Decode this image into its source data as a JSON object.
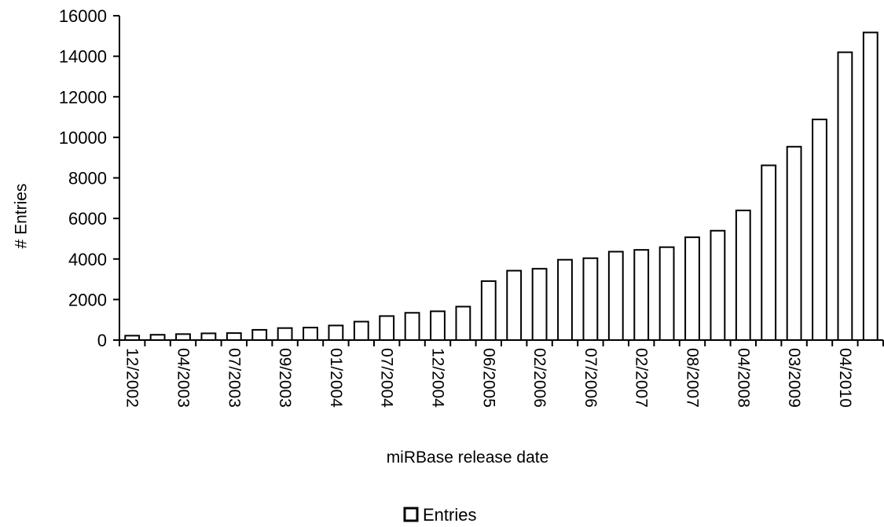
{
  "chart_data": {
    "type": "bar",
    "xlabel": "miRBase release date",
    "ylabel": "# Entries",
    "ylim": [
      0,
      16000
    ],
    "yticks": [
      0,
      2000,
      4000,
      6000,
      8000,
      10000,
      12000,
      14000,
      16000
    ],
    "grid": false,
    "legend_position": "bottom-center",
    "bar_fill": "#ffffff",
    "bar_stroke": "#000000",
    "categories": [
      "12/2002",
      "",
      "04/2003",
      "",
      "07/2003",
      "",
      "09/2003",
      "",
      "01/2004",
      "",
      "07/2004",
      "",
      "12/2004",
      "",
      "06/2005",
      "",
      "02/2006",
      "",
      "07/2006",
      "",
      "02/2007",
      "",
      "08/2007",
      "",
      "04/2008",
      "",
      "03/2009",
      "",
      "04/2010",
      ""
    ],
    "series": [
      {
        "name": "Entries",
        "values": [
          218,
          262,
          295,
          332,
          345,
          506,
          593,
          616,
          719,
          910,
          1185,
          1345,
          1420,
          1650,
          2909,
          3424,
          3518,
          3963,
          4039,
          4361,
          4449,
          4584,
          5071,
          5395,
          6396,
          8619,
          9539,
          10883,
          14197,
          15172
        ]
      }
    ]
  }
}
